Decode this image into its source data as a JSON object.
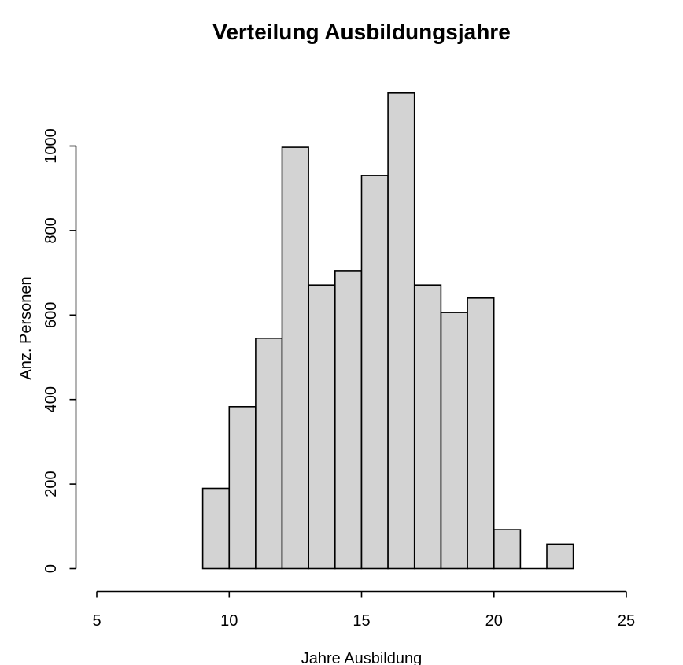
{
  "chart_data": {
    "type": "bar",
    "subtype": "histogram",
    "title": "Verteilung Ausbildungsjahre",
    "xlabel": "Jahre Ausbildung",
    "ylabel": "Anz. Personen",
    "bin_start": 9,
    "bin_width": 1,
    "bin_edges": [
      9,
      10,
      11,
      12,
      13,
      14,
      15,
      16,
      17,
      18,
      19,
      20,
      21,
      22,
      23
    ],
    "values": [
      190,
      383,
      545,
      997,
      671,
      705,
      930,
      1126,
      671,
      606,
      640,
      92,
      0,
      58
    ],
    "xticks": [
      5,
      10,
      15,
      20,
      25
    ],
    "yticks": [
      0,
      200,
      400,
      600,
      800,
      1000
    ],
    "xlim": [
      5,
      25
    ],
    "ylim": [
      0,
      1000
    ],
    "grid": false,
    "legend": false,
    "colors": {
      "bar_fill": "#d3d3d3",
      "bar_stroke": "#000000",
      "axis": "#000000",
      "background": "#ffffff",
      "text": "#000000"
    }
  }
}
